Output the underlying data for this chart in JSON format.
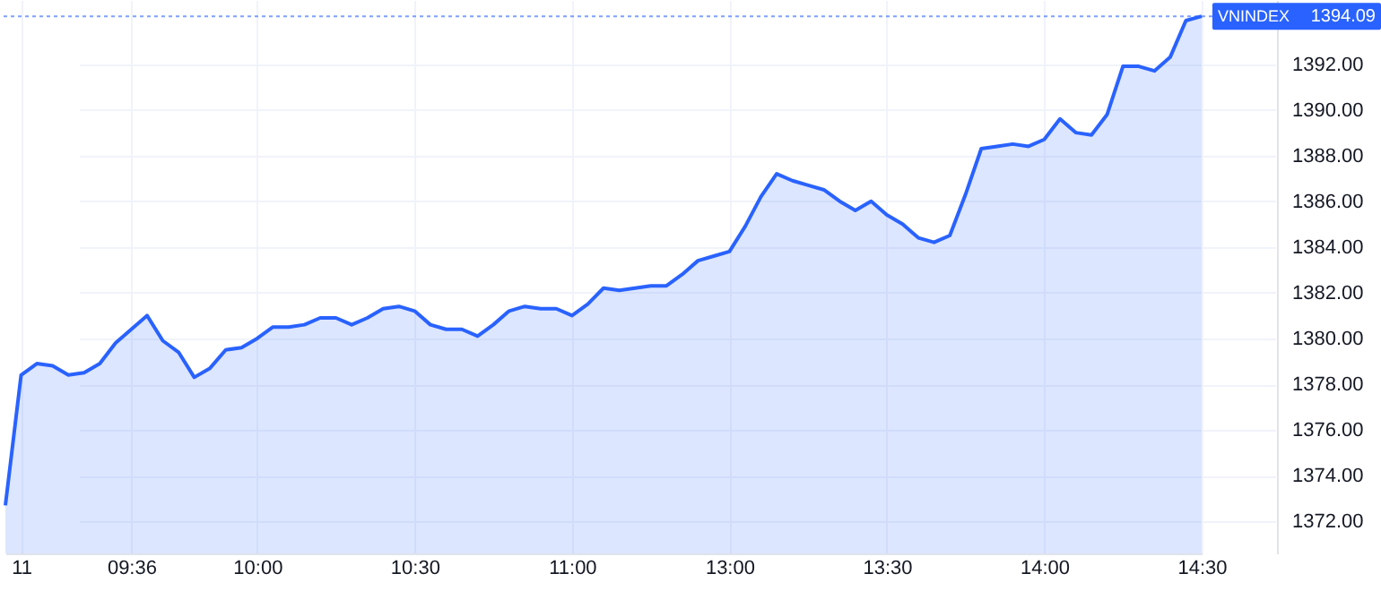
{
  "chart_data": {
    "type": "area",
    "categories": [
      null,
      "11",
      null,
      null,
      null,
      null,
      null,
      null,
      "09:36",
      null,
      null,
      null,
      null,
      null,
      null,
      null,
      "10:00",
      null,
      null,
      null,
      null,
      null,
      null,
      null,
      null,
      null,
      "10:30",
      null,
      null,
      null,
      null,
      null,
      null,
      null,
      null,
      null,
      "11:00",
      null,
      null,
      null,
      null,
      null,
      null,
      null,
      null,
      null,
      "13:00",
      null,
      null,
      null,
      null,
      null,
      null,
      null,
      null,
      null,
      "13:30",
      null,
      null,
      null,
      null,
      null,
      null,
      null,
      null,
      null,
      "14:00",
      null,
      null,
      null,
      null,
      null,
      null,
      null,
      null,
      null,
      "14:30"
    ],
    "series": [
      {
        "name": "VNINDEX",
        "color": "#2962ff",
        "values": [
          1372.7,
          1378.4,
          1378.9,
          1378.8,
          1378.4,
          1378.5,
          1378.9,
          1379.8,
          1380.4,
          1381.0,
          1379.9,
          1379.4,
          1378.3,
          1378.7,
          1379.5,
          1379.6,
          1380.0,
          1380.5,
          1380.5,
          1380.6,
          1380.9,
          1380.9,
          1380.6,
          1380.9,
          1381.3,
          1381.4,
          1381.2,
          1380.6,
          1380.4,
          1380.4,
          1380.1,
          1380.6,
          1381.2,
          1381.4,
          1381.3,
          1381.3,
          1381.0,
          1381.5,
          1382.2,
          1382.1,
          1382.2,
          1382.3,
          1382.3,
          1382.8,
          1383.4,
          1383.6,
          1383.8,
          1384.9,
          1386.2,
          1387.2,
          1386.9,
          1386.7,
          1386.5,
          1386.0,
          1385.6,
          1386.0,
          1385.4,
          1385.0,
          1384.4,
          1384.2,
          1384.5,
          1386.3,
          1388.3,
          1388.4,
          1388.5,
          1388.4,
          1388.7,
          1389.6,
          1389.0,
          1388.9,
          1389.8,
          1391.9,
          1391.9,
          1391.7,
          1392.3,
          1393.9,
          1394.09
        ]
      }
    ],
    "ylim": [
      1370.6,
      1394.8
    ],
    "yticks": [
      {
        "value": 1372,
        "label": "1372.00"
      },
      {
        "value": 1374,
        "label": "1374.00"
      },
      {
        "value": 1376,
        "label": "1376.00"
      },
      {
        "value": 1378,
        "label": "1378.00"
      },
      {
        "value": 1380,
        "label": "1380.00"
      },
      {
        "value": 1382,
        "label": "1382.00"
      },
      {
        "value": 1384,
        "label": "1384.00"
      },
      {
        "value": 1386,
        "label": "1386.00"
      },
      {
        "value": 1388,
        "label": "1388.00"
      },
      {
        "value": 1390,
        "label": "1390.00"
      },
      {
        "value": 1392,
        "label": "1392.00"
      }
    ],
    "ref_lines": [
      {
        "axis": "y",
        "value": 1394.09,
        "label": "1394.09",
        "color": "#2962ff",
        "line_style": "dotted"
      }
    ],
    "grid": true,
    "marker": "none",
    "line_style": "solid"
  }
}
